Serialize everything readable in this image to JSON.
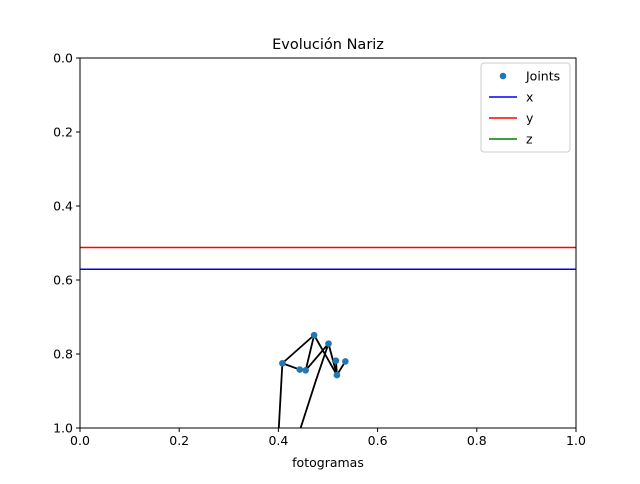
{
  "chart_data": {
    "type": "line",
    "title": "Evolución Nariz",
    "xlabel": "fotogramas",
    "ylabel": "",
    "xlim": [
      0,
      1
    ],
    "ylim": [
      0,
      1
    ],
    "y_inverted": true,
    "grid": false,
    "legend_position": "top-right",
    "x_ticks": [
      "0.0",
      "0.2",
      "0.4",
      "0.6",
      "0.8",
      "1.0"
    ],
    "y_ticks": [
      "0.0",
      "0.2",
      "0.4",
      "0.6",
      "0.8",
      "1.0"
    ],
    "legend": [
      {
        "label": "Joints",
        "type": "marker",
        "color": "#1f77b4"
      },
      {
        "label": "x",
        "type": "line",
        "color": "#0000ff"
      },
      {
        "label": "y",
        "type": "line",
        "color": "#ff0000"
      },
      {
        "label": "z",
        "type": "line",
        "color": "#008000"
      }
    ],
    "series": [
      {
        "name": "x",
        "color": "#0000ff",
        "x": [
          0,
          1
        ],
        "y": [
          0.571,
          0.571
        ]
      },
      {
        "name": "y",
        "color": "#ff0000",
        "x": [
          0,
          1
        ],
        "y": [
          0.512,
          0.512
        ]
      }
    ],
    "joints": {
      "color": "#1f77b4",
      "points": [
        {
          "x": 0.408,
          "y": 0.825
        },
        {
          "x": 0.443,
          "y": 0.842
        },
        {
          "x": 0.455,
          "y": 0.844
        },
        {
          "x": 0.472,
          "y": 0.749
        },
        {
          "x": 0.501,
          "y": 0.772
        },
        {
          "x": 0.516,
          "y": 0.818
        },
        {
          "x": 0.518,
          "y": 0.857
        },
        {
          "x": 0.535,
          "y": 0.82
        }
      ]
    },
    "skeleton": {
      "color": "#000000",
      "segments": [
        [
          [
            0.408,
            0.825
          ],
          [
            0.472,
            0.749
          ]
        ],
        [
          [
            0.472,
            0.749
          ],
          [
            0.455,
            0.844
          ]
        ],
        [
          [
            0.455,
            0.844
          ],
          [
            0.443,
            0.842
          ]
        ],
        [
          [
            0.443,
            0.842
          ],
          [
            0.408,
            0.825
          ]
        ],
        [
          [
            0.408,
            0.825
          ],
          [
            0.4,
            1.02
          ]
        ],
        [
          [
            0.472,
            0.749
          ],
          [
            0.518,
            0.857
          ]
        ],
        [
          [
            0.518,
            0.857
          ],
          [
            0.535,
            0.82
          ]
        ],
        [
          [
            0.518,
            0.857
          ],
          [
            0.516,
            0.818
          ]
        ],
        [
          [
            0.455,
            0.844
          ],
          [
            0.501,
            0.772
          ]
        ],
        [
          [
            0.501,
            0.772
          ],
          [
            0.518,
            0.857
          ]
        ],
        [
          [
            0.501,
            0.772
          ],
          [
            0.476,
            0.87
          ]
        ],
        [
          [
            0.476,
            0.87
          ],
          [
            0.44,
            1.02
          ]
        ]
      ]
    }
  }
}
